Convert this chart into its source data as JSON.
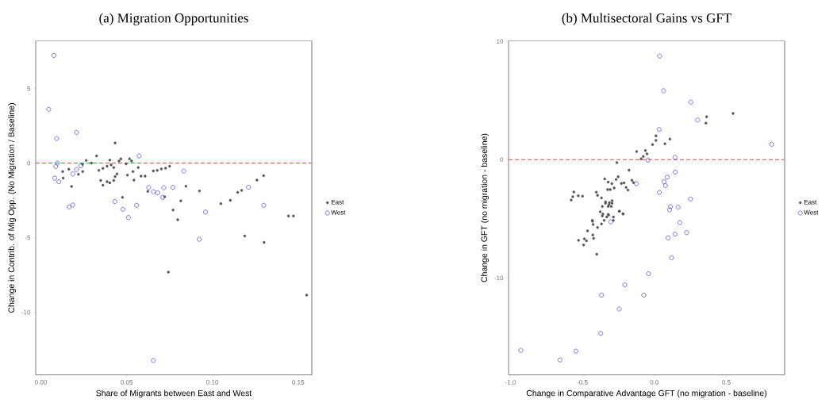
{
  "chart_data": [
    {
      "type": "scatter",
      "title": "(a) Migration Opportunities",
      "xlabel": "Share of Migrants between East and West",
      "ylabel": "Change in Contrib. of Mig Opp. (No Migration / Baseline)",
      "legend": "right",
      "xlim": [
        -0.003,
        0.158
      ],
      "ylim": [
        -14.2,
        8.2
      ],
      "xticks": [
        {
          "value": 0,
          "label": "0.00"
        },
        {
          "value": 0.05,
          "label": "0.05"
        },
        {
          "value": 0.1,
          "label": "0.10"
        },
        {
          "value": 0.15,
          "label": "0.15"
        }
      ],
      "yticks": [
        -10,
        -5,
        0,
        5
      ],
      "ref_lines": [
        {
          "axis": "y",
          "value": 0,
          "color": "#e0302e",
          "line_style": "dashed"
        }
      ],
      "series": [
        {
          "name": "East",
          "color": "#555555",
          "marker": "circle",
          "x": [
            0.0433,
            0.0325,
            0.0264,
            0.0295,
            0.0243,
            0.0219,
            0.0244,
            0.0127,
            0.013,
            0.0163,
            0.0179,
            0.0338,
            0.0362,
            0.0386,
            0.0402,
            0.041,
            0.0425,
            0.0349,
            0.0362,
            0.0386,
            0.0402,
            0.0425,
            0.0433,
            0.0444,
            0.0456,
            0.0467,
            0.0476,
            0.0497,
            0.0505,
            0.0517,
            0.0529,
            0.0537,
            0.0543,
            0.0568,
            0.0584,
            0.0608,
            0.0624,
            0.0656,
            0.0679,
            0.0703,
            0.0727,
            0.0751,
            0.0722,
            0.0771,
            0.0816,
            0.0798,
            0.0846,
            0.0925,
            0.105,
            0.1105,
            0.1148,
            0.1171,
            0.126,
            0.1299,
            0.1444,
            0.1473,
            0.0744,
            0.1189,
            0.1302,
            0.155
          ],
          "values": [
            1.35,
            0.48,
            0.18,
            0.0,
            -0.09,
            -0.75,
            -0.57,
            -0.57,
            -1.0,
            -0.41,
            -1.57,
            -0.48,
            -0.36,
            -0.21,
            0.2,
            -0.12,
            -0.3,
            -1.16,
            -1.48,
            -1.25,
            -1.32,
            -1.16,
            -0.9,
            -0.73,
            0.14,
            0.28,
            -2.3,
            -0.05,
            -0.8,
            0.28,
            0.14,
            -0.57,
            -1.14,
            -0.3,
            -0.87,
            -0.87,
            -1.9,
            -0.53,
            -0.48,
            -0.39,
            -0.34,
            -0.21,
            -2.26,
            -3.15,
            -2.53,
            -3.8,
            -1.55,
            -1.87,
            -2.72,
            -2.49,
            -1.96,
            -1.83,
            -1.14,
            -0.84,
            -3.55,
            -3.55,
            -7.31,
            -4.89,
            -5.32,
            -8.86
          ]
        },
        {
          "name": "West",
          "color": "#5a50e6",
          "marker": "circle",
          "x": [
            0.0076,
            0.0046,
            0.0208,
            0.0092,
            0.0573,
            0.0097,
            0.0087,
            0.0233,
            0.0208,
            0.0186,
            0.0081,
            0.0105,
            0.0833,
            0.0629,
            0.0657,
            0.0681,
            0.0717,
            0.077,
            0.0711,
            0.1211,
            0.0165,
            0.0186,
            0.0432,
            0.0478,
            0.0559,
            0.13,
            0.096,
            0.0511,
            0.0924,
            0.0656
          ],
          "values": [
            7.22,
            3.61,
            2.06,
            1.65,
            0.48,
            0.0,
            -0.23,
            -0.18,
            -0.43,
            -0.73,
            -1.01,
            -1.25,
            -0.53,
            -1.64,
            -1.92,
            -1.99,
            -1.65,
            -1.63,
            -2.3,
            -1.62,
            -2.94,
            -2.81,
            -2.58,
            -3.1,
            -2.83,
            -2.83,
            -3.28,
            -3.65,
            -5.11,
            -13.24
          ]
        }
      ]
    },
    {
      "type": "scatter",
      "title": "(b) Multisectoral Gains vs GFT",
      "xlabel": "Change in Comparative Advantage GFT (no migration - baseline)",
      "ylabel": "Change in GFT (no migration - baseline)",
      "legend": "right",
      "xlim": [
        -1.013,
        0.905
      ],
      "ylim": [
        -18.2,
        10.05
      ],
      "xticks": [
        {
          "value": -1,
          "label": "-1.0"
        },
        {
          "value": -0.5,
          "label": "-0.5"
        },
        {
          "value": 0,
          "label": "0.0"
        },
        {
          "value": 0.5,
          "label": "0.5"
        }
      ],
      "yticks": [
        -10,
        0,
        10
      ],
      "ref_lines": [
        {
          "axis": "y",
          "value": 0,
          "color": "#e0302e",
          "line_style": "dashed"
        }
      ],
      "series": [
        {
          "name": "East",
          "color": "#555555",
          "marker": "circle",
          "x": [
            0.547,
            0.3633,
            0.358,
            0.1083,
            0.0734,
            0.011,
            0.011,
            -0.0128,
            -0.123,
            -0.0624,
            -0.0514,
            -0.077,
            -0.0917,
            -0.2605,
            -0.1761,
            -0.345,
            -0.2514,
            -0.266,
            -0.321,
            -0.2954,
            -0.279,
            -0.2294,
            -0.211,
            -0.1963,
            -0.1835,
            -0.156,
            -0.145,
            -0.3248,
            -0.3064,
            -0.4037,
            -0.3945,
            -0.367,
            -0.5596,
            -0.567,
            -0.578,
            -0.5284,
            -0.499,
            -0.3394,
            -0.3119,
            -0.2936,
            -0.2991,
            -0.321,
            -0.3615,
            -0.3761,
            -0.3578,
            -0.3174,
            -0.2422,
            -0.2165,
            -0.4312,
            -0.349,
            -0.2848,
            -0.4294,
            -0.4257,
            -0.3945,
            -0.4642,
            -0.4275,
            -0.422,
            -0.5266,
            -0.4862,
            -0.4716,
            -0.4917,
            -0.4,
            -0.367,
            -0.3615,
            -0.3303,
            -0.321,
            -0.2844,
            -0.244,
            -0.2183,
            -0.3156,
            -0.2936,
            -0.339
          ],
          "values": [
            3.91,
            3.63,
            3.09,
            1.74,
            1.34,
            2.01,
            1.63,
            1.27,
            0.69,
            0.78,
            0.49,
            0.27,
            0.07,
            -0.25,
            -0.89,
            -1.63,
            -1.45,
            -1.68,
            -1.9,
            -2.03,
            -2.39,
            -2.01,
            -1.97,
            -2.35,
            -2.57,
            -1.74,
            -1.94,
            -2.53,
            -2.53,
            -2.75,
            -3.02,
            -3.24,
            -2.73,
            -3.13,
            -3.42,
            -3.06,
            -3.09,
            -3.69,
            -3.64,
            -3.69,
            -3.96,
            -3.96,
            -3.96,
            -4.41,
            -4.59,
            -4.68,
            -4.36,
            -4.59,
            -5.14,
            -5.14,
            -5.14,
            -5.21,
            -5.48,
            -5.74,
            -6.03,
            -6.37,
            -6.66,
            -6.82,
            -6.7,
            -6.86,
            -7.22,
            -8.0,
            -5.43,
            -4.76,
            -4.85,
            -4.63,
            -4.85,
            -4.36,
            -4.58,
            -3.81,
            -3.48,
            -3.57
          ]
        },
        {
          "name": "West",
          "color": "#5a50e6",
          "marker": "circle",
          "x": [
            0.0367,
            0.0642,
            0.2532,
            0.3009,
            0.033,
            0.8147,
            0.1431,
            -0.044,
            0.145,
            0.0899,
            0.0679,
            0.077,
            -0.1248,
            0.0349,
            0.2514,
            0.112,
            0.1064,
            0.1651,
            -0.3028,
            0.178,
            0.0954,
            0.1431,
            0.2239,
            0.1193,
            -0.0404,
            -0.2055,
            -0.367,
            -0.0734,
            -0.244,
            -0.3725,
            -0.928,
            -0.545,
            -0.655
          ],
          "values": [
            8.76,
            5.83,
            4.87,
            3.35,
            2.55,
            1.3,
            0.2,
            -0.04,
            -1.05,
            -1.48,
            -1.88,
            -2.19,
            -2.03,
            -2.77,
            -3.33,
            -3.98,
            -4.25,
            -4.02,
            -5.25,
            -5.32,
            -6.61,
            -6.3,
            -6.17,
            -8.31,
            -9.65,
            -10.59,
            -11.46,
            -11.46,
            -12.63,
            -14.7,
            -16.13,
            -16.2,
            -16.94
          ]
        }
      ]
    }
  ]
}
